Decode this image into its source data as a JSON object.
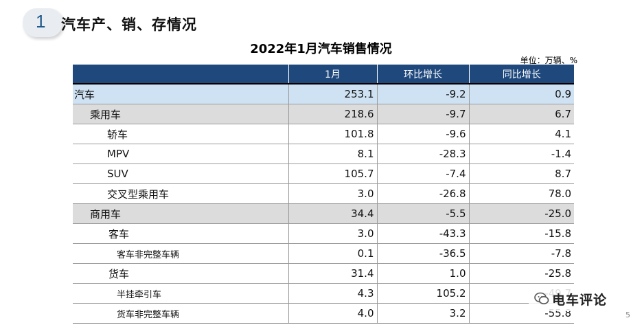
{
  "section": {
    "number": "1",
    "title": "汽车产、销、存情况"
  },
  "table_title": "2022年1月汽车销售情况",
  "unit": "单位：万辆、%",
  "columns": [
    "",
    "1月",
    "环比增长",
    "同比增长"
  ],
  "rows": [
    {
      "name": "汽车",
      "level": 0,
      "m1": "253.1",
      "mom": "-9.2",
      "yoy": "0.9"
    },
    {
      "name": "乘用车",
      "level": 1,
      "m1": "218.6",
      "mom": "-9.7",
      "yoy": "6.7"
    },
    {
      "name": "轿车",
      "level": 2,
      "m1": "101.8",
      "mom": "-9.6",
      "yoy": "4.1"
    },
    {
      "name": "MPV",
      "level": 2,
      "m1": "8.1",
      "mom": "-28.3",
      "yoy": "-1.4"
    },
    {
      "name": "SUV",
      "level": 2,
      "m1": "105.7",
      "mom": "-7.4",
      "yoy": "8.7"
    },
    {
      "name": "交叉型乘用车",
      "level": 2,
      "m1": "3.0",
      "mom": "-26.8",
      "yoy": "78.0"
    },
    {
      "name": "商用车",
      "level": 1,
      "m1": "34.4",
      "mom": "-5.5",
      "yoy": "-25.0"
    },
    {
      "name": "客车",
      "level": 4,
      "m1": "3.0",
      "mom": "-43.3",
      "yoy": "-15.8"
    },
    {
      "name": "客车非完整车辆",
      "level": 3,
      "m1": "0.1",
      "mom": "-36.5",
      "yoy": "-7.8"
    },
    {
      "name": "货车",
      "level": 4,
      "m1": "31.4",
      "mom": "1.0",
      "yoy": "-25.8"
    },
    {
      "name": "半挂牵引车",
      "level": 3,
      "m1": "4.3",
      "mom": "105.2",
      "yoy": "-49.7"
    },
    {
      "name": "货车非完整车辆",
      "level": 3,
      "m1": "4.0",
      "mom": "3.2",
      "yoy": "-55.8"
    }
  ],
  "logo_text": "电车评论",
  "page_number": "5",
  "colors": {
    "header_bg": "#1f497d",
    "total_row_bg": "#cfe2f3",
    "category_row_bg": "#dcdcdc"
  }
}
